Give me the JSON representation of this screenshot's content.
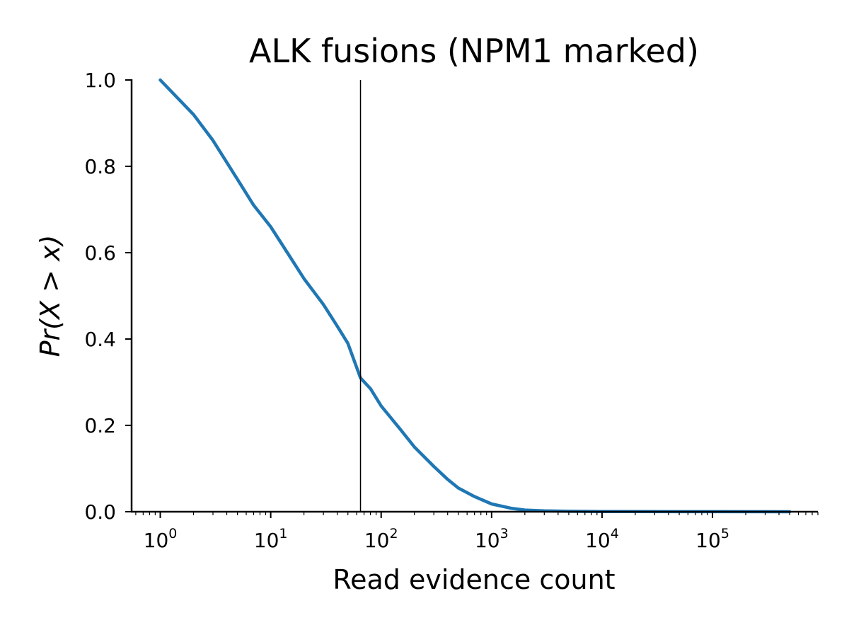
{
  "chart_data": {
    "type": "line",
    "title": "ALK fusions (NPM1 marked)",
    "xlabel": "Read evidence count",
    "ylabel": "Pr(X > x)",
    "x_scale": "log",
    "xlim": [
      0.55,
      900000
    ],
    "ylim": [
      0,
      1.0
    ],
    "x_ticks": [
      {
        "base": "10",
        "exp": "0",
        "value": 1
      },
      {
        "base": "10",
        "exp": "1",
        "value": 10
      },
      {
        "base": "10",
        "exp": "2",
        "value": 100
      },
      {
        "base": "10",
        "exp": "3",
        "value": 1000
      },
      {
        "base": "10",
        "exp": "4",
        "value": 10000
      },
      {
        "base": "10",
        "exp": "5",
        "value": 100000
      }
    ],
    "y_ticks": [
      "0.0",
      "0.2",
      "0.4",
      "0.6",
      "0.8",
      "1.0"
    ],
    "grid": false,
    "series": [
      {
        "color": "#1f77b4",
        "x": [
          1,
          2,
          3,
          5,
          7,
          10,
          15,
          20,
          30,
          40,
          50,
          65,
          80,
          100,
          150,
          200,
          300,
          400,
          500,
          700,
          1000,
          1500,
          2000,
          3000,
          5000,
          10000,
          50000,
          100000,
          500000
        ],
        "y": [
          1.0,
          0.92,
          0.86,
          0.77,
          0.71,
          0.66,
          0.59,
          0.54,
          0.48,
          0.43,
          0.39,
          0.31,
          0.285,
          0.245,
          0.19,
          0.15,
          0.105,
          0.075,
          0.055,
          0.035,
          0.018,
          0.008,
          0.004,
          0.002,
          0.001,
          0.0005,
          0.0002,
          0.0001,
          0.0
        ]
      }
    ],
    "marker_line": {
      "x": 65,
      "color": "#000000"
    }
  }
}
